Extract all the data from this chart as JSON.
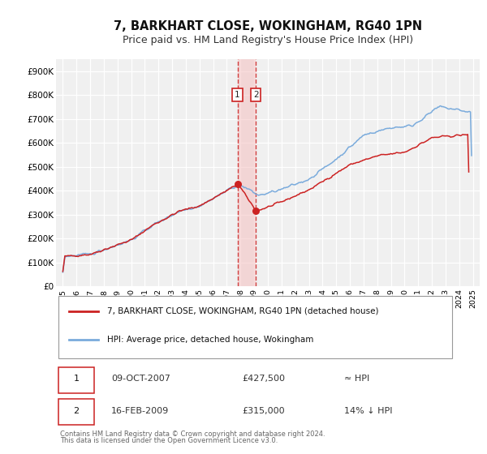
{
  "title": "7, BARKHART CLOSE, WOKINGHAM, RG40 1PN",
  "subtitle": "Price paid vs. HM Land Registry's House Price Index (HPI)",
  "xlim": [
    1994.5,
    2025.5
  ],
  "ylim": [
    0,
    950000
  ],
  "yticks": [
    0,
    100000,
    200000,
    300000,
    400000,
    500000,
    600000,
    700000,
    800000,
    900000
  ],
  "ytick_labels": [
    "£0",
    "£100K",
    "£200K",
    "£300K",
    "£400K",
    "£500K",
    "£600K",
    "£700K",
    "£800K",
    "£900K"
  ],
  "xtick_years": [
    1995,
    1996,
    1997,
    1998,
    1999,
    2000,
    2001,
    2002,
    2003,
    2004,
    2005,
    2006,
    2007,
    2008,
    2009,
    2010,
    2011,
    2012,
    2013,
    2014,
    2015,
    2016,
    2017,
    2018,
    2019,
    2020,
    2021,
    2022,
    2023,
    2024,
    2025
  ],
  "hpi_color": "#7aabdc",
  "price_color": "#cc2222",
  "marker_color": "#cc2222",
  "sale1_x": 2007.775,
  "sale1_y": 427500,
  "sale2_x": 2009.12,
  "sale2_y": 315000,
  "vline1_x": 2007.775,
  "vline2_x": 2009.12,
  "shade_x1": 2007.775,
  "shade_x2": 2009.12,
  "legend_label_price": "7, BARKHART CLOSE, WOKINGHAM, RG40 1PN (detached house)",
  "legend_label_hpi": "HPI: Average price, detached house, Wokingham",
  "table_row1_num": "1",
  "table_row1_date": "09-OCT-2007",
  "table_row1_price": "£427,500",
  "table_row1_hpi": "≈ HPI",
  "table_row2_num": "2",
  "table_row2_date": "16-FEB-2009",
  "table_row2_price": "£315,000",
  "table_row2_hpi": "14% ↓ HPI",
  "footnote1": "Contains HM Land Registry data © Crown copyright and database right 2024.",
  "footnote2": "This data is licensed under the Open Government Licence v3.0.",
  "bg_color": "#ffffff",
  "plot_bg_color": "#f0f0f0",
  "grid_color": "#ffffff",
  "title_fontsize": 10.5,
  "subtitle_fontsize": 9.0
}
